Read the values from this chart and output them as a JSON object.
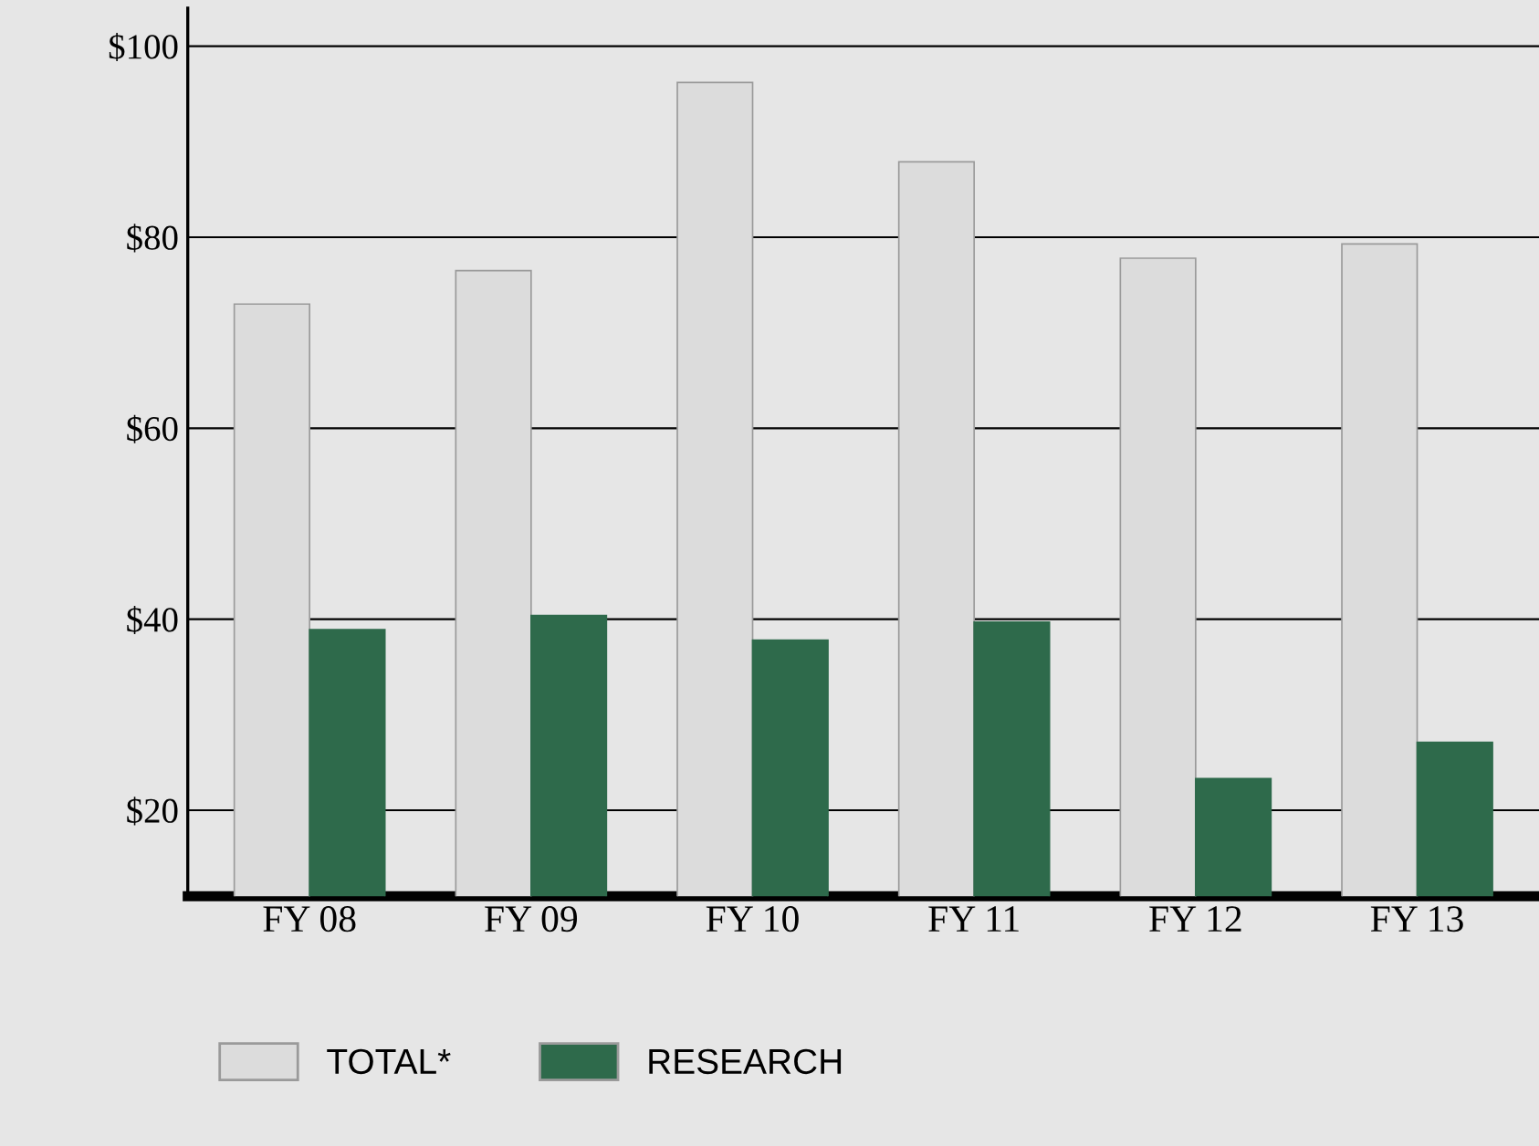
{
  "chart_data": {
    "type": "bar",
    "categories": [
      "FY 08",
      "FY 09",
      "FY 10",
      "FY 11",
      "FY 12",
      "FY 13"
    ],
    "series": [
      {
        "name": "TOTAL*",
        "color": "#dcdcdc",
        "values": [
          73,
          76.5,
          96.2,
          87.9,
          77.8,
          79.3
        ]
      },
      {
        "name": "RESEARCH",
        "color": "#2e6a4b",
        "values": [
          38.9,
          40.4,
          37.8,
          39.7,
          23.3,
          27.1
        ]
      }
    ],
    "ylim": [
      11,
      104
    ],
    "yticks": [
      {
        "value": 20,
        "label": "$20"
      },
      {
        "value": 40,
        "label": "$40"
      },
      {
        "value": 60,
        "label": "$60"
      },
      {
        "value": 80,
        "label": "$80"
      },
      {
        "value": 100,
        "label": "$100"
      }
    ],
    "grid": "y",
    "legend": "bottom left"
  }
}
